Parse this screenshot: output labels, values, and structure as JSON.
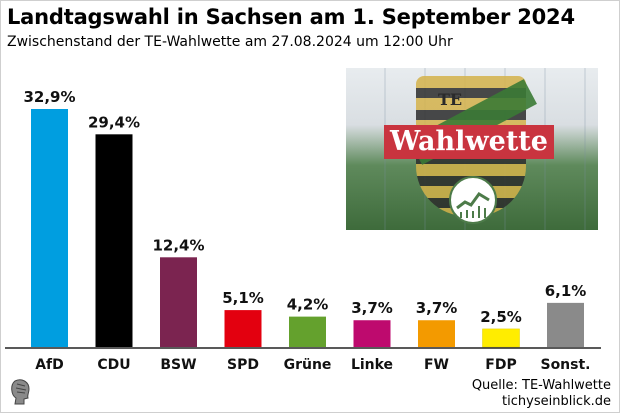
{
  "title": "Landtagswahl in Sachsen am 1. September 2024",
  "subtitle": "Zwischenstand der TE-Wahlwette am 27.08.2024 um 12:00 Uhr",
  "promo": {
    "logo_text": "TE",
    "banner_text": "Wahlwette"
  },
  "source": {
    "line1": "Quelle: TE-Wahlwette",
    "line2": "tichyseinblick.de"
  },
  "colors": {
    "AfD": "#009ee0",
    "CDU": "#000000",
    "BSW": "#7b2450",
    "SPD": "#e3000f",
    "Grüne": "#64a12d",
    "Linke": "#be0a6e",
    "FW": "#f39a00",
    "FDP": "#ffed00",
    "Sonst.": "#8a8a8a"
  },
  "chart_data": {
    "type": "bar",
    "categories": [
      "AfD",
      "CDU",
      "BSW",
      "SPD",
      "Grüne",
      "Linke",
      "FW",
      "FDP",
      "Sonst."
    ],
    "values": [
      32.9,
      29.4,
      12.4,
      5.1,
      4.2,
      3.7,
      3.7,
      2.5,
      6.1
    ],
    "value_labels": [
      "32,9%",
      "29,4%",
      "12,4%",
      "5,1%",
      "4,2%",
      "3,7%",
      "3,7%",
      "2,5%",
      "6,1%"
    ],
    "title": "Landtagswahl in Sachsen am 1. September 2024",
    "subtitle": "Zwischenstand der TE-Wahlwette am 27.08.2024 um 12:00 Uhr",
    "ylim": [
      0,
      32.9
    ],
    "grid": false,
    "legend": "none"
  }
}
